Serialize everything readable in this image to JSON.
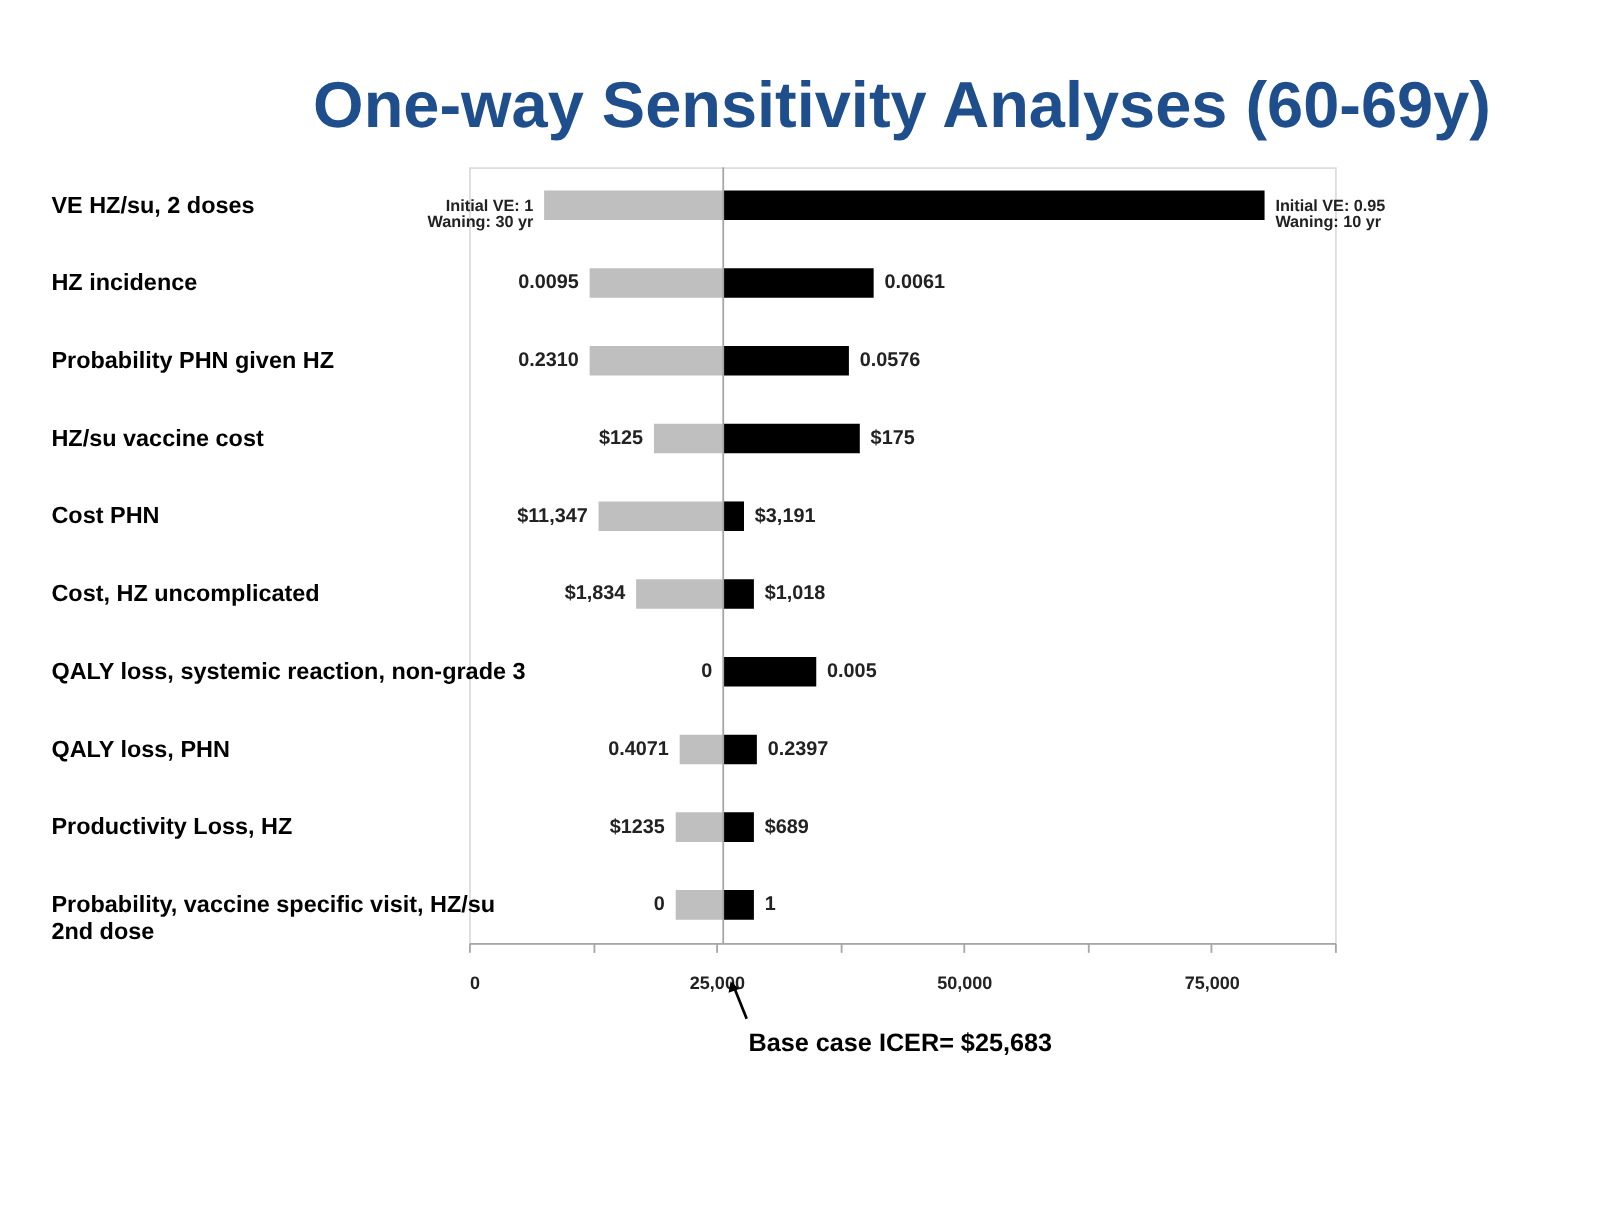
{
  "chart_data": {
    "type": "bar",
    "orientation": "horizontal",
    "title": "One-way Sensitivity Analyses (60-69y)",
    "categories": [
      "VE HZ/su, 2 doses",
      "HZ incidence",
      "Probability PHN given HZ",
      "HZ/su vaccine cost",
      "Cost PHN",
      "Cost, HZ uncomplicated",
      "QALY loss, systemic reaction, non-grade 3",
      "QALY loss, PHN",
      "Productivity Loss, HZ",
      "Probability, vaccine specific visit, HZ/su\n2nd dose"
    ],
    "series": [
      {
        "color": "#bfbfbf",
        "base": [
          25683,
          25683,
          25683,
          25683,
          25683,
          25683,
          null,
          25683,
          25683,
          25683
        ],
        "values": [
          -18100,
          -13500,
          -13500,
          -7000,
          -12600,
          -8800,
          null,
          -4400,
          -4800,
          -4800
        ]
      },
      {
        "color": "#000000",
        "base": [
          25683,
          25683,
          25683,
          25683,
          25683,
          25683,
          25683,
          25683,
          25683,
          25683
        ],
        "values": [
          54700,
          15200,
          12700,
          13800,
          2100,
          3100,
          9400,
          3400,
          3100,
          3100
        ]
      }
    ],
    "xlim": [
      0,
      87500
    ],
    "xticks": [
      0,
      {
        "value": 12500,
        "label": null
      },
      {
        "value": 25000,
        "label": "25,000"
      },
      {
        "value": 37500,
        "label": null
      },
      {
        "value": 50000,
        "label": "50,000"
      },
      {
        "value": 62500,
        "label": null
      },
      {
        "value": 75000,
        "label": "75,000"
      },
      {
        "value": 87500,
        "label": null
      }
    ],
    "ref_lines": [
      {
        "axis": "x",
        "value": 25683,
        "color": "#a6a6a6"
      }
    ],
    "annotations": [
      "Base case ICER= $25,683",
      {
        "text": "Initial VE: 1\nWaning: 30 yr",
        "x": 7583,
        "y": "VE HZ/su, 2 doses"
      },
      {
        "text": "0.0095",
        "x": 12183,
        "y": "HZ incidence"
      },
      {
        "text": "0.2310",
        "x": 12183,
        "y": "Probability PHN given HZ"
      },
      {
        "text": "$125",
        "x": 18683,
        "y": "HZ/su vaccine cost"
      },
      {
        "text": "$11,347",
        "x": 13083,
        "y": "Cost PHN"
      },
      {
        "text": "$1,834",
        "x": 16883,
        "y": "Cost, HZ uncomplicated"
      },
      {
        "text": "0",
        "x": 25683,
        "y": "QALY loss, systemic reaction, non-grade 3"
      },
      {
        "text": "0.4071",
        "x": 21283,
        "y": "QALY loss, PHN"
      },
      {
        "text": "$1235",
        "x": 20883,
        "y": "Productivity Loss, HZ"
      },
      {
        "text": "0",
        "x": 20883,
        "y": "Probability, vaccine specific visit, HZ/su\n2nd dose"
      },
      {
        "text": "Initial VE: 0.95\nWaning: 10 yr",
        "x": 80383,
        "y": "VE HZ/su, 2 doses"
      },
      {
        "text": "0.0061",
        "x": 40883,
        "y": "HZ incidence"
      },
      {
        "text": "0.0576",
        "x": 38383,
        "y": "Probability PHN given HZ"
      },
      {
        "text": "$175",
        "x": 39483,
        "y": "HZ/su vaccine cost"
      },
      {
        "text": "$3,191",
        "x": 27783,
        "y": "Cost PHN"
      },
      {
        "text": "$1,018",
        "x": 28783,
        "y": "Cost, HZ uncomplicated"
      },
      {
        "text": "0.005",
        "x": 35083,
        "y": "QALY loss, systemic reaction, non-grade 3"
      },
      {
        "text": "0.2397",
        "x": 29083,
        "y": "QALY loss, PHN"
      },
      {
        "text": "$689",
        "x": 28783,
        "y": "Productivity Loss, HZ"
      },
      {
        "text": "1",
        "x": 28783,
        "y": "Probability, vaccine specific visit, HZ/su\n2nd dose"
      }
    ]
  }
}
